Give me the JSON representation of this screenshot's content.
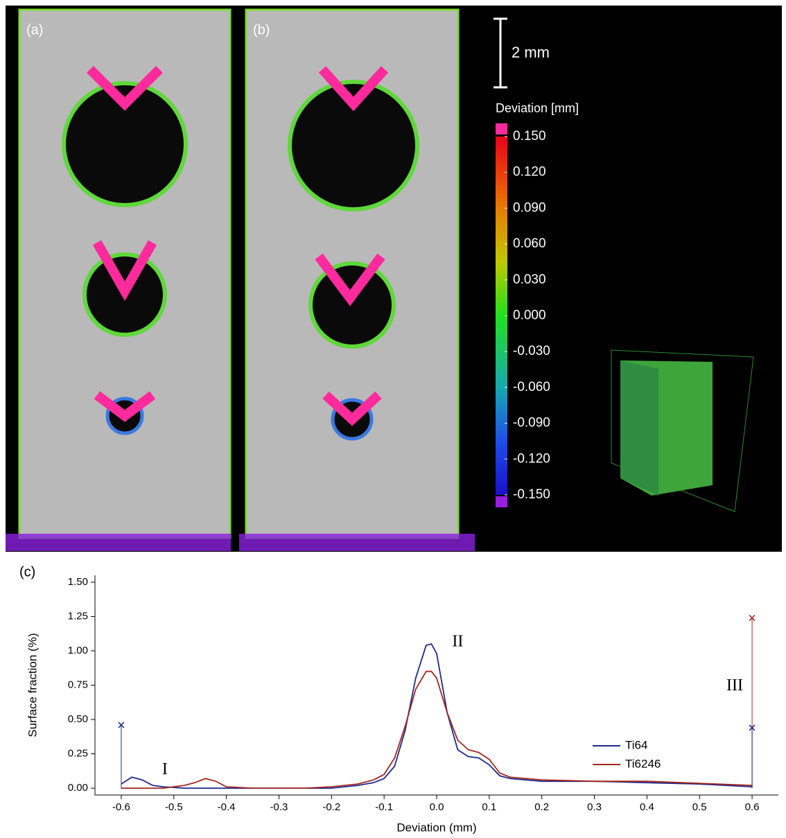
{
  "panel_labels": [
    "(a)",
    "(b)",
    "(c)"
  ],
  "scale_bar": "2 mm",
  "colorbar": {
    "title": "Deviation [mm]",
    "lim": [
      -0.15,
      0.15
    ],
    "ticks": [
      {
        "value": 0.15,
        "label": "0.150"
      },
      {
        "value": 0.12,
        "label": "0.120"
      },
      {
        "value": 0.09,
        "label": "0.090"
      },
      {
        "value": 0.06,
        "label": "0.060"
      },
      {
        "value": 0.03,
        "label": "0.030"
      },
      {
        "value": 0,
        "label": "0.000"
      },
      {
        "value": -0.03,
        "label": "-0.030"
      },
      {
        "value": -0.06,
        "label": "-0.060"
      },
      {
        "value": -0.09,
        "label": "-0.090"
      },
      {
        "value": -0.12,
        "label": "-0.120"
      },
      {
        "value": -0.15,
        "label": "-0.150"
      }
    ]
  },
  "chart_data": {
    "type": "line",
    "x_label": "Deviation (mm)",
    "y_label": "Surface fraction (%)",
    "xlim": [
      -0.65,
      0.65
    ],
    "ylim": [
      -0.05,
      1.55
    ],
    "xticks": [
      -0.6,
      -0.5,
      -0.4,
      -0.3,
      -0.2,
      -0.1,
      {
        "value": 0,
        "label": "0.0"
      },
      0.1,
      0.2,
      0.3,
      0.4,
      0.5,
      0.6
    ],
    "yticks": [
      {
        "value": 0,
        "label": "0.00"
      },
      0.25,
      {
        "value": 0.5,
        "label": "0.50"
      },
      0.75,
      {
        "value": 1,
        "label": "1.00"
      },
      1.25,
      {
        "value": 1.5,
        "label": "1.50"
      }
    ],
    "x": [
      -0.6,
      -0.58,
      -0.56,
      -0.54,
      -0.52,
      -0.5,
      -0.48,
      -0.46,
      -0.44,
      -0.42,
      -0.4,
      -0.35,
      -0.3,
      -0.25,
      -0.2,
      -0.15,
      -0.12,
      -0.1,
      -0.08,
      -0.06,
      -0.04,
      -0.02,
      -0.01,
      0,
      0.02,
      0.04,
      0.06,
      0.08,
      0.1,
      0.12,
      0.14,
      0.2,
      0.3,
      0.4,
      0.5,
      0.6
    ],
    "series": [
      {
        "name": "Ti64",
        "color": "#1c2a8c",
        "values": [
          0.03,
          0.08,
          0.06,
          0.02,
          0.01,
          0.005,
          0,
          0,
          0,
          0,
          0,
          0,
          0,
          0,
          0,
          0.02,
          0.04,
          0.07,
          0.16,
          0.42,
          0.8,
          1.04,
          1.05,
          0.98,
          0.55,
          0.28,
          0.23,
          0.22,
          0.17,
          0.09,
          0.07,
          0.05,
          0.05,
          0.04,
          0.03,
          0.01
        ]
      },
      {
        "name": "Ti6246",
        "color": "#a3261e",
        "values": [
          0,
          0,
          0,
          0,
          0,
          0.01,
          0.02,
          0.04,
          0.07,
          0.05,
          0.01,
          0,
          0,
          0,
          0.01,
          0.03,
          0.06,
          0.1,
          0.22,
          0.45,
          0.72,
          0.85,
          0.85,
          0.8,
          0.55,
          0.35,
          0.28,
          0.26,
          0.21,
          0.11,
          0.08,
          0.06,
          0.05,
          0.05,
          0.035,
          0.02
        ]
      }
    ],
    "markers": [
      {
        "x": -0.6,
        "y": 0.46,
        "color": "#1c2a8c"
      },
      {
        "x": 0.6,
        "y": 1.24,
        "color": "#a3261e"
      },
      {
        "x": 0.6,
        "y": 0.44,
        "color": "#1c2a8c"
      }
    ],
    "annotations": [
      {
        "text": "I",
        "x": -0.517,
        "y": 0.13
      },
      {
        "text": "II",
        "x": 0.04,
        "y": 1.06
      },
      {
        "text": "III",
        "x": 0.567,
        "y": 0.74
      }
    ],
    "legend": "right"
  }
}
